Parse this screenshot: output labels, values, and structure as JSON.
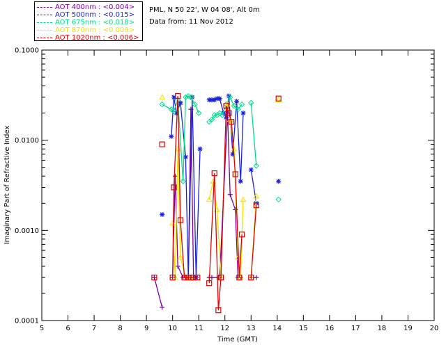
{
  "info": {
    "location": "PML, N 50 22', W 04 08', Alt 0m",
    "date": "Data from: 11 Nov 2012"
  },
  "legend": [
    {
      "label": "AOT  400nm : <0.004>",
      "color": "#7b00a0"
    },
    {
      "label": "AOT  500nm : <0.015>",
      "color": "#1a20e0"
    },
    {
      "label": "AOT  675nm : <0.018>",
      "color": "#00dd88"
    },
    {
      "label": "AOT  870nm : <0.009>",
      "color": "#f0e000"
    },
    {
      "label": "AOT 1020nm : <0.006>",
      "color": "#e00000"
    }
  ],
  "chart_data": {
    "type": "line",
    "xlabel": "Time (GMT)",
    "ylabel": "Imaginary Part of Refractive Index",
    "xlim": [
      5,
      20
    ],
    "ylim": [
      0.0001,
      0.1
    ],
    "yscale": "log",
    "xticks": [
      5,
      6,
      7,
      8,
      9,
      10,
      11,
      12,
      13,
      14,
      15,
      16,
      17,
      18,
      19,
      20
    ],
    "yticks": [
      {
        "value": 0.0001,
        "label": "0.0001"
      },
      {
        "value": 0.001,
        "label": "0.0010"
      },
      {
        "value": 0.01,
        "label": "0.0100"
      },
      {
        "value": 0.1,
        "label": "0.1000"
      }
    ],
    "series": [
      {
        "name": "AOT  400nm : <0.004>",
        "color": "#7b00a0",
        "marker": "plus",
        "segments": [
          [
            [
              9.3,
              0.0003
            ],
            [
              9.6,
              0.00014
            ]
          ],
          [
            [
              10.0,
              0.0003
            ],
            [
              10.1,
              0.004
            ],
            [
              10.2,
              0.0004
            ],
            [
              10.4,
              0.0003
            ],
            [
              10.5,
              0.0003
            ],
            [
              10.6,
              0.0003
            ],
            [
              10.7,
              0.022
            ],
            [
              10.8,
              0.0003
            ]
          ],
          [
            [
              11.4,
              0.0003
            ],
            [
              11.5,
              0.0003
            ],
            [
              11.7,
              0.0003
            ],
            [
              11.8,
              0.0003
            ],
            [
              12.1,
              0.02
            ],
            [
              12.2,
              0.0025
            ],
            [
              12.4,
              0.0017
            ],
            [
              12.5,
              0.0003
            ],
            [
              12.6,
              0.0003
            ]
          ],
          [
            [
              13.0,
              0.0003
            ],
            [
              13.2,
              0.0003
            ]
          ]
        ]
      },
      {
        "name": "AOT  500nm : <0.015>",
        "color": "#1a20e0",
        "marker": "asterisk",
        "segments": [
          [
            [
              9.6,
              0.0015
            ]
          ],
          [
            [
              9.95,
              0.011
            ],
            [
              10.05,
              0.03
            ],
            [
              10.15,
              0.02
            ],
            [
              10.3,
              0.026
            ],
            [
              10.5,
              0.0065
            ],
            [
              10.6,
              0.0003
            ],
            [
              10.75,
              0.03
            ],
            [
              10.9,
              0.0003
            ],
            [
              11.05,
              0.008
            ]
          ],
          [
            [
              11.4,
              0.028
            ],
            [
              11.5,
              0.028
            ],
            [
              11.6,
              0.028
            ],
            [
              11.7,
              0.029
            ],
            [
              11.8,
              0.029
            ],
            [
              11.95,
              0.02
            ],
            [
              12.05,
              0.018
            ],
            [
              12.15,
              0.031
            ],
            [
              12.3,
              0.007
            ],
            [
              12.45,
              0.027
            ],
            [
              12.6,
              0.0035
            ],
            [
              12.7,
              0.02
            ]
          ],
          [
            [
              13.0,
              0.0047
            ],
            [
              13.2,
              0.002
            ]
          ],
          [
            [
              14.05,
              0.0035
            ]
          ]
        ]
      },
      {
        "name": "AOT  675nm : <0.018>",
        "color": "#00dd88",
        "marker": "diamond",
        "segments": [
          [
            [
              9.6,
              0.025
            ],
            [
              9.95,
              0.022
            ],
            [
              10.05,
              0.021
            ],
            [
              10.2,
              0.028
            ],
            [
              10.4,
              0.0035
            ],
            [
              10.5,
              0.03
            ],
            [
              10.6,
              0.031
            ],
            [
              10.7,
              0.03
            ],
            [
              10.85,
              0.025
            ],
            [
              11.0,
              0.02
            ]
          ],
          [
            [
              11.4,
              0.016
            ],
            [
              11.5,
              0.017
            ],
            [
              11.6,
              0.019
            ],
            [
              11.7,
              0.019
            ],
            [
              11.8,
              0.02
            ],
            [
              11.9,
              0.019
            ],
            [
              12.05,
              0.025
            ],
            [
              12.2,
              0.03
            ],
            [
              12.35,
              0.024
            ],
            [
              12.5,
              0.022
            ],
            [
              12.65,
              0.025
            ]
          ],
          [
            [
              13.0,
              0.026
            ],
            [
              13.2,
              0.0052
            ]
          ],
          [
            [
              14.05,
              0.0022
            ]
          ]
        ]
      },
      {
        "name": "AOT  870nm : <0.009>",
        "color": "#f0e000",
        "marker": "triangle",
        "segments": [
          [
            [
              9.6,
              0.03
            ]
          ],
          [
            [
              10.0,
              0.0012
            ],
            [
              10.1,
              0.0003
            ],
            [
              10.2,
              0.008
            ],
            [
              10.3,
              0.0005
            ],
            [
              10.5,
              0.0003
            ],
            [
              10.6,
              0.0003
            ],
            [
              10.7,
              0.0003
            ]
          ],
          [
            [
              11.4,
              0.0022
            ],
            [
              11.55,
              0.0035
            ],
            [
              11.7,
              0.0017
            ],
            [
              11.85,
              0.0003
            ]
          ],
          [
            [
              12.1,
              0.025
            ],
            [
              12.2,
              0.017
            ],
            [
              12.35,
              0.008
            ],
            [
              12.5,
              0.0005
            ],
            [
              12.6,
              0.0003
            ],
            [
              12.7,
              0.0022
            ]
          ],
          [
            [
              13.0,
              0.0003
            ],
            [
              13.2,
              0.0024
            ]
          ],
          [
            [
              14.05,
              0.028
            ]
          ]
        ]
      },
      {
        "name": "AOT 1020nm : <0.006>",
        "color": "#e00000",
        "marker": "square",
        "segments": [
          [
            [
              9.3,
              0.0003
            ]
          ],
          [
            [
              9.6,
              0.009
            ]
          ],
          [
            [
              10.0,
              0.0003
            ],
            [
              10.05,
              0.003
            ],
            [
              10.2,
              0.031
            ],
            [
              10.3,
              0.0013
            ],
            [
              10.45,
              0.0003
            ],
            [
              10.6,
              0.0003
            ],
            [
              10.7,
              0.0003
            ],
            [
              10.8,
              0.0003
            ],
            [
              10.95,
              0.0003
            ]
          ],
          [
            [
              11.4,
              0.00026
            ],
            [
              11.6,
              0.0043
            ],
            [
              11.75,
              0.00013
            ],
            [
              11.85,
              0.0003
            ],
            [
              12.05,
              0.024
            ],
            [
              12.15,
              0.02
            ],
            [
              12.25,
              0.016
            ],
            [
              12.4,
              0.0042
            ],
            [
              12.55,
              0.0003
            ],
            [
              12.65,
              0.0009
            ]
          ],
          [
            [
              13.0,
              0.0003
            ],
            [
              13.2,
              0.0019
            ]
          ],
          [
            [
              14.05,
              0.029
            ]
          ]
        ]
      }
    ]
  }
}
